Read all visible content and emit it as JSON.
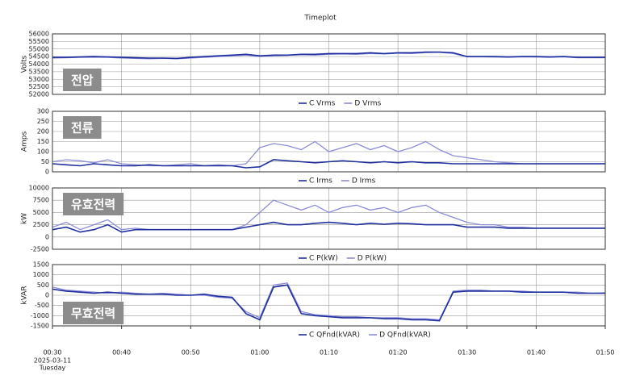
{
  "chart_data": [
    {
      "type": "line",
      "title": "Timeplot",
      "ylabel": "Volts",
      "annotation": "전압",
      "grid": true,
      "xlim": [
        "00:30",
        "01:50"
      ],
      "xticks": [
        "00:30",
        "00:40",
        "00:50",
        "01:00",
        "01:10",
        "01:20",
        "01:30",
        "01:40",
        "01:50"
      ],
      "ylim": [
        52000,
        56000
      ],
      "yticks": [
        52000,
        52500,
        53000,
        53500,
        54000,
        54500,
        55000,
        55500,
        56000
      ],
      "x": [
        "00:30",
        "00:32",
        "00:34",
        "00:36",
        "00:38",
        "00:40",
        "00:42",
        "00:44",
        "00:46",
        "00:48",
        "00:50",
        "00:52",
        "00:54",
        "00:56",
        "00:58",
        "01:00",
        "01:02",
        "01:04",
        "01:06",
        "01:08",
        "01:10",
        "01:12",
        "01:14",
        "01:16",
        "01:18",
        "01:20",
        "01:22",
        "01:24",
        "01:26",
        "01:28",
        "01:30",
        "01:32",
        "01:34",
        "01:36",
        "01:38",
        "01:40",
        "01:42",
        "01:44",
        "01:46",
        "01:48",
        "01:50"
      ],
      "series": [
        {
          "name": "C Vrms",
          "color": "#1f2f9e",
          "values": [
            54450,
            54450,
            54480,
            54500,
            54480,
            54450,
            54420,
            54400,
            54400,
            54380,
            54450,
            54500,
            54550,
            54600,
            54650,
            54550,
            54600,
            54600,
            54650,
            54650,
            54700,
            54700,
            54700,
            54750,
            54700,
            54750,
            54750,
            54800,
            54800,
            54750,
            54500,
            54500,
            54500,
            54480,
            54500,
            54500,
            54480,
            54500,
            54450,
            54450,
            54450
          ]
        },
        {
          "name": "D Vrms",
          "color": "#8c8cd8",
          "values": [
            54400,
            54420,
            54450,
            54450,
            54450,
            54400,
            54380,
            54350,
            54380,
            54350,
            54400,
            54450,
            54500,
            54550,
            54600,
            54500,
            54550,
            54580,
            54620,
            54600,
            54650,
            54680,
            54650,
            54700,
            54680,
            54720,
            54700,
            54750,
            54780,
            54700,
            54480,
            54480,
            54470,
            54450,
            54480,
            54470,
            54450,
            54480,
            54420,
            54420,
            54420
          ]
        }
      ]
    },
    {
      "type": "line",
      "ylabel": "Amps",
      "annotation": "전류",
      "grid": true,
      "xlim": [
        "00:30",
        "01:50"
      ],
      "xticks": [
        "00:30",
        "00:40",
        "00:50",
        "01:00",
        "01:10",
        "01:20",
        "01:30",
        "01:40",
        "01:50"
      ],
      "ylim": [
        0,
        300
      ],
      "yticks": [
        0,
        50,
        100,
        150,
        200,
        250,
        300
      ],
      "x": [
        "00:30",
        "00:32",
        "00:34",
        "00:36",
        "00:38",
        "00:40",
        "00:42",
        "00:44",
        "00:46",
        "00:48",
        "00:50",
        "00:52",
        "00:54",
        "00:56",
        "00:58",
        "01:00",
        "01:02",
        "01:04",
        "01:06",
        "01:08",
        "01:10",
        "01:12",
        "01:14",
        "01:16",
        "01:18",
        "01:20",
        "01:22",
        "01:24",
        "01:26",
        "01:28",
        "01:30",
        "01:32",
        "01:34",
        "01:36",
        "01:38",
        "01:40",
        "01:42",
        "01:44",
        "01:46",
        "01:48",
        "01:50"
      ],
      "series": [
        {
          "name": "C Irms",
          "color": "#1f2f9e",
          "values": [
            40,
            35,
            30,
            40,
            35,
            30,
            30,
            35,
            30,
            30,
            30,
            30,
            30,
            30,
            20,
            25,
            60,
            55,
            50,
            45,
            50,
            55,
            50,
            45,
            50,
            45,
            50,
            45,
            45,
            40,
            40,
            40,
            40,
            40,
            40,
            40,
            40,
            40,
            40,
            40,
            40
          ]
        },
        {
          "name": "D Irms",
          "color": "#8c8cd8",
          "values": [
            50,
            60,
            55,
            45,
            60,
            40,
            35,
            30,
            30,
            35,
            40,
            30,
            35,
            30,
            40,
            120,
            140,
            130,
            110,
            150,
            100,
            120,
            140,
            110,
            130,
            100,
            120,
            150,
            110,
            80,
            70,
            60,
            50,
            45,
            40,
            40,
            40,
            40,
            40,
            40,
            40
          ]
        }
      ]
    },
    {
      "type": "line",
      "ylabel": "kW",
      "annotation": "유효전력",
      "grid": true,
      "xlim": [
        "00:30",
        "01:50"
      ],
      "xticks": [
        "00:30",
        "00:40",
        "00:50",
        "01:00",
        "01:10",
        "01:20",
        "01:30",
        "01:40",
        "01:50"
      ],
      "ylim": [
        -2500,
        10000
      ],
      "yticks": [
        -2500,
        0,
        2500,
        5000,
        7500,
        10000
      ],
      "x": [
        "00:30",
        "00:32",
        "00:34",
        "00:36",
        "00:38",
        "00:40",
        "00:42",
        "00:44",
        "00:46",
        "00:48",
        "00:50",
        "00:52",
        "00:54",
        "00:56",
        "00:58",
        "01:00",
        "01:02",
        "01:04",
        "01:06",
        "01:08",
        "01:10",
        "01:12",
        "01:14",
        "01:16",
        "01:18",
        "01:20",
        "01:22",
        "01:24",
        "01:26",
        "01:28",
        "01:30",
        "01:32",
        "01:34",
        "01:36",
        "01:38",
        "01:40",
        "01:42",
        "01:44",
        "01:46",
        "01:48",
        "01:50"
      ],
      "series": [
        {
          "name": "C P(kW)",
          "color": "#1f2f9e",
          "values": [
            1500,
            2000,
            1000,
            1500,
            2500,
            1000,
            1500,
            1500,
            1500,
            1500,
            1500,
            1500,
            1500,
            1500,
            2000,
            2500,
            3000,
            2500,
            2500,
            2800,
            3000,
            2800,
            2500,
            2800,
            2600,
            2800,
            2700,
            2500,
            2500,
            2500,
            2000,
            2000,
            2000,
            1800,
            1800,
            1800,
            1800,
            1800,
            1800,
            1800,
            1800
          ]
        },
        {
          "name": "D P(kW)",
          "color": "#8c8cd8",
          "values": [
            2000,
            3000,
            1500,
            2500,
            3500,
            1500,
            1800,
            1500,
            1500,
            1500,
            1500,
            1500,
            1500,
            1500,
            2500,
            5000,
            7500,
            6500,
            5500,
            6500,
            5000,
            6000,
            6500,
            5500,
            6000,
            5000,
            6000,
            6500,
            5000,
            4000,
            3000,
            2500,
            2500,
            2000,
            2000,
            1800,
            1800,
            1800,
            1800,
            1800,
            1800
          ]
        }
      ]
    },
    {
      "type": "line",
      "ylabel": "kVAR",
      "annotation": "무효전력",
      "grid": true,
      "xlim": [
        "00:30",
        "01:50"
      ],
      "xticks": [
        "00:30",
        "00:40",
        "00:50",
        "01:00",
        "01:10",
        "01:20",
        "01:30",
        "01:40",
        "01:50"
      ],
      "date": "2025-03-11",
      "weekday": "Tuesday",
      "ylim": [
        -1500,
        1500
      ],
      "yticks": [
        -1500,
        -1000,
        -500,
        0,
        500,
        1000,
        1500
      ],
      "x": [
        "00:30",
        "00:32",
        "00:34",
        "00:36",
        "00:38",
        "00:40",
        "00:42",
        "00:44",
        "00:46",
        "00:48",
        "00:50",
        "00:52",
        "00:54",
        "00:56",
        "00:58",
        "01:00",
        "01:02",
        "01:04",
        "01:06",
        "01:08",
        "01:10",
        "01:12",
        "01:14",
        "01:16",
        "01:18",
        "01:20",
        "01:22",
        "01:24",
        "01:26",
        "01:28",
        "01:30",
        "01:32",
        "01:34",
        "01:36",
        "01:38",
        "01:40",
        "01:42",
        "01:44",
        "01:46",
        "01:48",
        "01:50"
      ],
      "series": [
        {
          "name": "C QFnd(kVAR)",
          "color": "#1f2f9e",
          "values": [
            300,
            200,
            150,
            100,
            150,
            100,
            50,
            50,
            50,
            0,
            0,
            50,
            -50,
            -100,
            -900,
            -1200,
            400,
            500,
            -900,
            -1000,
            -1050,
            -1100,
            -1100,
            -1100,
            -1150,
            -1150,
            -1200,
            -1200,
            -1250,
            150,
            200,
            200,
            200,
            200,
            150,
            150,
            150,
            150,
            100,
            100,
            100
          ]
        },
        {
          "name": "D QFnd(kVAR)",
          "color": "#8c8cd8",
          "values": [
            400,
            250,
            200,
            150,
            100,
            150,
            100,
            50,
            100,
            50,
            0,
            0,
            -100,
            -150,
            -800,
            -1100,
            500,
            600,
            -800,
            -950,
            -1000,
            -1050,
            -1050,
            -1100,
            -1100,
            -1100,
            -1150,
            -1150,
            -1200,
            200,
            250,
            250,
            200,
            200,
            200,
            150,
            150,
            150,
            150,
            100,
            120
          ]
        }
      ]
    }
  ]
}
